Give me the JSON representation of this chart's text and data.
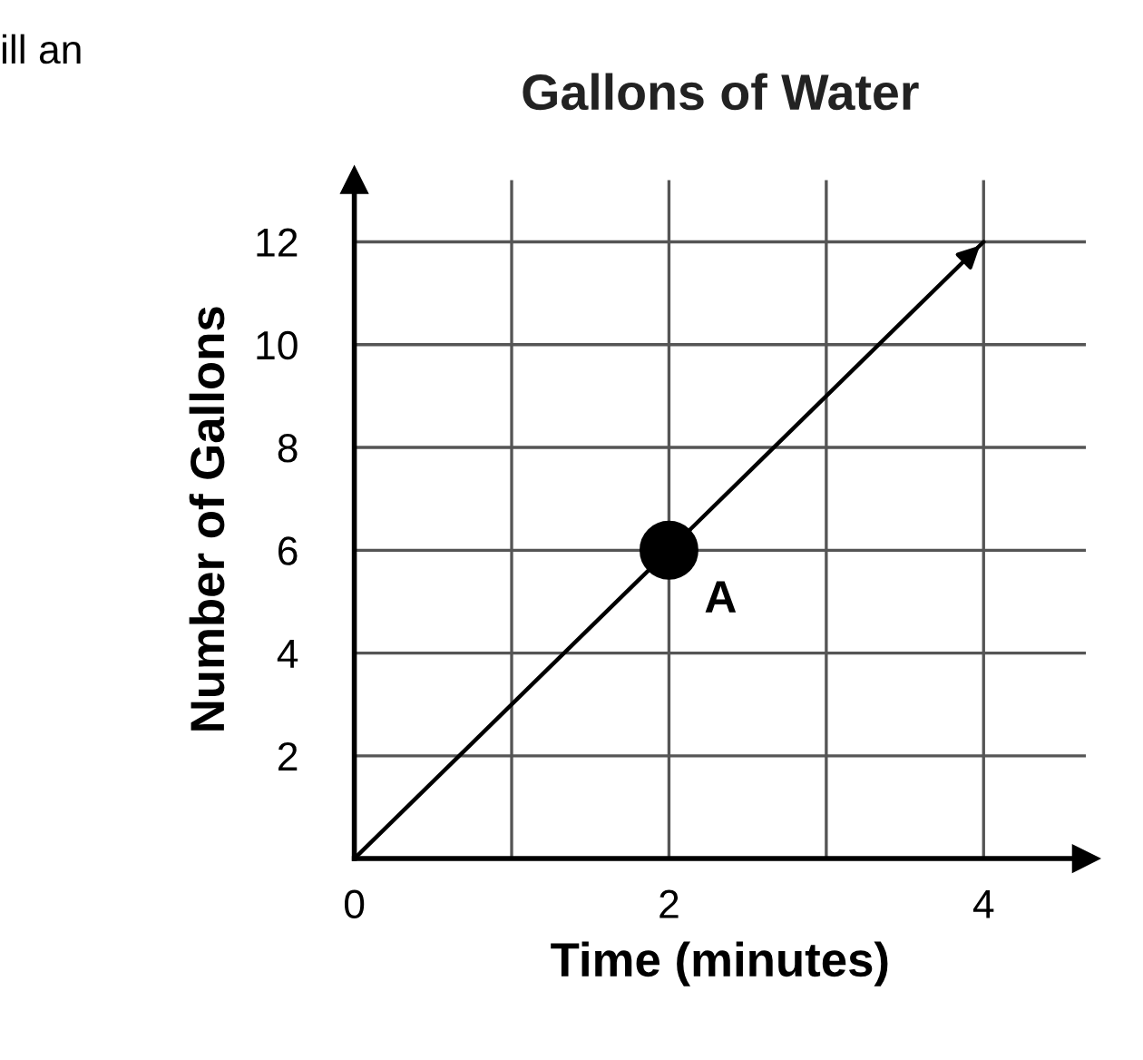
{
  "chart_data": {
    "type": "line",
    "title": "Gallons of Water",
    "xlabel": "Time (minutes)",
    "ylabel": "Number of Gallons",
    "annotations": [
      "ill an",
      {
        "text": "A",
        "x": 2,
        "y": 6
      }
    ],
    "series": [
      {
        "x": [
          0,
          4
        ],
        "values": [
          0,
          12
        ],
        "color": "#000000",
        "marker": "none"
      },
      {
        "type": "scatter",
        "x": [
          2
        ],
        "values": [
          6
        ],
        "color": "#000000",
        "marker": "circle"
      }
    ],
    "xlim": [
      0,
      4.65
    ],
    "ylim": [
      0,
      13.2
    ],
    "xticks": [
      0,
      {
        "value": 1,
        "label": null
      },
      2,
      {
        "value": 3,
        "label": null
      },
      4
    ],
    "yticks": [
      {
        "value": 0,
        "label": null
      },
      2,
      4,
      6,
      8,
      10,
      12
    ],
    "grid": true,
    "legend": false
  }
}
